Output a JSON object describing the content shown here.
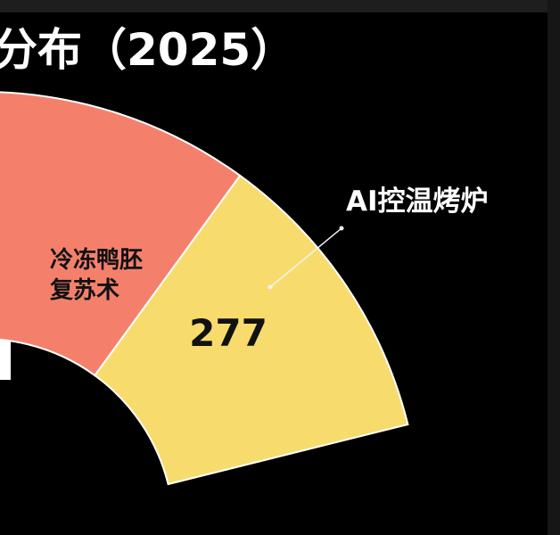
{
  "title": "分布（2025）",
  "colors": {
    "background": "#000000",
    "leader_line": "#f2f2f2"
  },
  "chart_data": {
    "type": "pie",
    "style": "donut",
    "title": "分布（2025）",
    "slices": [
      {
        "label_lines": [
          "冷冻鸭胚",
          "复苏术"
        ],
        "value": null,
        "value_label": "",
        "color": "#e5e5e5",
        "label_placement": "inside",
        "label_color": "#111111"
      },
      {
        "label_lines": [
          "AI控温烤炉"
        ],
        "value": 277,
        "value_label": "277",
        "color": "#f4806c",
        "label_placement": "outside-with-leader",
        "label_color": "#ffffff"
      },
      {
        "label_lines": [],
        "value": null,
        "value_label": "",
        "color": "#f7dc6d",
        "label_placement": "none",
        "label_color": "#111111"
      }
    ]
  }
}
